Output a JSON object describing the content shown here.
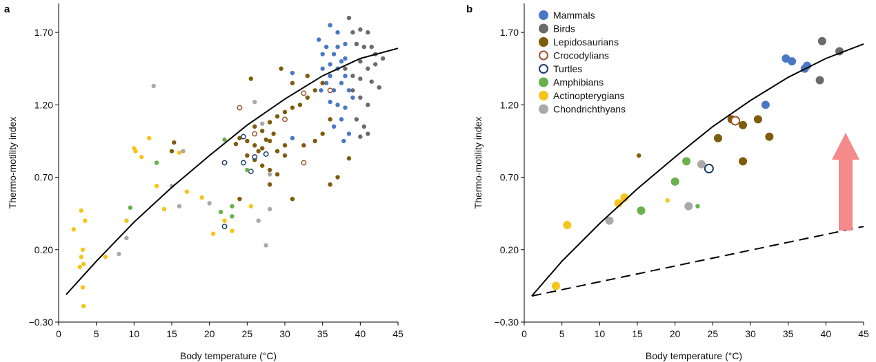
{
  "chart_data": [
    {
      "panel": "a",
      "type": "scatter",
      "xlabel": "Body temperature (°C)",
      "ylabel": "Thermo-motility index",
      "xlim": [
        0,
        45
      ],
      "ylim": [
        -0.3,
        1.9
      ],
      "xticks": [
        0,
        5,
        10,
        15,
        20,
        25,
        30,
        35,
        40,
        45
      ],
      "yticks": [
        -0.3,
        0.2,
        0.7,
        1.2,
        1.7
      ],
      "ytick_labels": [
        "−0.30",
        "0.20",
        "0.70",
        "1.20",
        "1.70"
      ],
      "fit_curve": [
        [
          1,
          -0.11
        ],
        [
          5,
          0.12
        ],
        [
          10,
          0.39
        ],
        [
          15,
          0.63
        ],
        [
          20,
          0.85
        ],
        [
          25,
          1.06
        ],
        [
          30,
          1.24
        ],
        [
          35,
          1.4
        ],
        [
          40,
          1.52
        ],
        [
          45,
          1.59
        ]
      ],
      "series": [
        {
          "name": "Mammals",
          "color": "#4a78c4",
          "hollow": false,
          "points": [
            [
              34.5,
              1.65
            ],
            [
              35.5,
              1.6
            ],
            [
              36,
              1.75
            ],
            [
              36.5,
              1.55
            ],
            [
              37,
              1.7
            ],
            [
              37.5,
              1.5
            ],
            [
              38,
              1.62
            ],
            [
              35,
              1.45
            ],
            [
              36,
              1.4
            ],
            [
              37,
              1.45
            ],
            [
              38,
              1.4
            ],
            [
              35.5,
              1.35
            ],
            [
              36.5,
              1.3
            ],
            [
              37.5,
              1.35
            ],
            [
              38.5,
              1.3
            ],
            [
              36,
              1.22
            ],
            [
              37,
              1.2
            ],
            [
              38,
              1.18
            ],
            [
              37.5,
              1.1
            ],
            [
              38.5,
              1.0
            ],
            [
              36.5,
              1.05
            ],
            [
              37.8,
              0.95
            ],
            [
              35,
              1.55
            ],
            [
              36,
              1.48
            ],
            [
              34.8,
              1.3
            ],
            [
              39,
              1.25
            ],
            [
              31,
              1.42
            ],
            [
              31,
              0.97
            ],
            [
              37,
              1.6
            ],
            [
              38,
              1.52
            ]
          ]
        },
        {
          "name": "Birds",
          "color": "#6b6b6b",
          "hollow": false,
          "points": [
            [
              38.5,
              1.8
            ],
            [
              39,
              1.7
            ],
            [
              40,
              1.72
            ],
            [
              41,
              1.7
            ],
            [
              39.5,
              1.62
            ],
            [
              40.5,
              1.6
            ],
            [
              41.5,
              1.6
            ],
            [
              42,
              1.55
            ],
            [
              40,
              1.5
            ],
            [
              41,
              1.45
            ],
            [
              42,
              1.48
            ],
            [
              43,
              1.52
            ],
            [
              39,
              1.4
            ],
            [
              40,
              1.38
            ],
            [
              41.5,
              1.36
            ],
            [
              42.5,
              1.32
            ],
            [
              40,
              1.25
            ],
            [
              41,
              1.2
            ],
            [
              39.5,
              1.1
            ],
            [
              40.5,
              1.05
            ],
            [
              41,
              1.0
            ],
            [
              40,
              0.98
            ],
            [
              39,
              1.3
            ],
            [
              38,
              1.45
            ]
          ]
        },
        {
          "name": "Lepidosaurians",
          "color": "#7d5c0c",
          "hollow": false,
          "points": [
            [
              24,
              0.97
            ],
            [
              25,
              0.95
            ],
            [
              26,
              0.92
            ],
            [
              27,
              0.9
            ],
            [
              28,
              0.95
            ],
            [
              29,
              0.88
            ],
            [
              30,
              0.92
            ],
            [
              25,
              0.85
            ],
            [
              26,
              0.82
            ],
            [
              27,
              0.78
            ],
            [
              28,
              0.75
            ],
            [
              29,
              0.72
            ],
            [
              30,
              0.85
            ],
            [
              26,
              1.05
            ],
            [
              27,
              1.02
            ],
            [
              28,
              1.08
            ],
            [
              29,
              1.12
            ],
            [
              30,
              1.15
            ],
            [
              31,
              1.18
            ],
            [
              32,
              1.2
            ],
            [
              33,
              1.25
            ],
            [
              34,
              1.3
            ],
            [
              35,
              1.35
            ],
            [
              25.5,
              1.38
            ],
            [
              29.5,
              1.45
            ],
            [
              31,
              1.35
            ],
            [
              33,
              1.4
            ],
            [
              36,
              0.65
            ],
            [
              37,
              0.7
            ],
            [
              38.5,
              0.83
            ],
            [
              15,
              0.88
            ],
            [
              15.3,
              0.94
            ],
            [
              24,
              0.55
            ],
            [
              31,
              0.55
            ],
            [
              28,
              0.65
            ],
            [
              32.5,
              0.92
            ],
            [
              35,
              1.0
            ],
            [
              36,
              1.1
            ],
            [
              34,
              0.95
            ],
            [
              27.5,
              0.96
            ],
            [
              26.5,
              0.88
            ],
            [
              23.5,
              0.93
            ],
            [
              28.5,
              1.0
            ]
          ]
        },
        {
          "name": "Crocodylians",
          "color": "#a0522d",
          "hollow": true,
          "points": [
            [
              24,
              1.18
            ],
            [
              26,
              1.0
            ],
            [
              30,
              1.1
            ],
            [
              32.5,
              1.28
            ],
            [
              32.5,
              0.8
            ],
            [
              36,
              1.3
            ]
          ]
        },
        {
          "name": "Turtles",
          "color": "#1a3a6b",
          "hollow": true,
          "points": [
            [
              22,
              0.8
            ],
            [
              24.5,
              0.8
            ],
            [
              25.5,
              0.74
            ],
            [
              26,
              0.84
            ],
            [
              27.5,
              0.86
            ],
            [
              24.5,
              0.98
            ],
            [
              22,
              0.36
            ]
          ]
        },
        {
          "name": "Amphibians",
          "color": "#6ab04c",
          "hollow": false,
          "points": [
            [
              13,
              0.8
            ],
            [
              9.5,
              0.49
            ],
            [
              22,
              0.96
            ],
            [
              23,
              0.5
            ],
            [
              21.5,
              0.46
            ],
            [
              25,
              0.75
            ],
            [
              23,
              0.43
            ]
          ]
        },
        {
          "name": "Actinopterygians",
          "color": "#f5c518",
          "hollow": false,
          "points": [
            [
              2,
              0.34
            ],
            [
              3,
              0.47
            ],
            [
              3.5,
              0.4
            ],
            [
              3.2,
              0.2
            ],
            [
              3,
              0.15
            ],
            [
              3.3,
              0.1
            ],
            [
              2.8,
              0.08
            ],
            [
              3.2,
              -0.06
            ],
            [
              3.3,
              -0.19
            ],
            [
              6.2,
              0.15
            ],
            [
              9,
              0.4
            ],
            [
              10,
              0.9
            ],
            [
              10.2,
              0.88
            ],
            [
              12,
              0.97
            ],
            [
              11,
              0.84
            ],
            [
              13,
              0.64
            ],
            [
              14,
              0.48
            ],
            [
              16,
              0.87
            ],
            [
              17,
              0.6
            ],
            [
              19,
              0.56
            ],
            [
              20.5,
              0.31
            ],
            [
              22,
              0.4
            ],
            [
              23,
              0.33
            ],
            [
              25.5,
              0.5
            ],
            [
              16.5,
              0.88
            ]
          ]
        },
        {
          "name": "Chondrichthyans",
          "color": "#a9a9a9",
          "hollow": false,
          "points": [
            [
              8,
              0.17
            ],
            [
              9,
              0.28
            ],
            [
              12.6,
              1.33
            ],
            [
              15,
              0.64
            ],
            [
              16,
              0.5
            ],
            [
              16.5,
              0.88
            ],
            [
              26.5,
              0.4
            ],
            [
              27.5,
              0.23
            ],
            [
              28,
              0.48
            ],
            [
              26,
              1.22
            ],
            [
              28,
              0.72
            ],
            [
              20,
              0.52
            ],
            [
              27,
              1.07
            ]
          ]
        }
      ]
    },
    {
      "panel": "b",
      "type": "scatter",
      "xlabel": "Body temperature (°C)",
      "ylabel": "Thermo-motility index",
      "xlim": [
        0,
        45
      ],
      "ylim": [
        -0.3,
        1.9
      ],
      "xticks": [
        0,
        5,
        10,
        15,
        20,
        25,
        30,
        35,
        40,
        45
      ],
      "yticks": [
        -0.3,
        0.2,
        0.7,
        1.2,
        1.7
      ],
      "ytick_labels": [
        "−0.30",
        "0.20",
        "0.70",
        "1.20",
        "1.70"
      ],
      "fit_curve": [
        [
          1,
          -0.12
        ],
        [
          5,
          0.12
        ],
        [
          10,
          0.38
        ],
        [
          15,
          0.62
        ],
        [
          20,
          0.84
        ],
        [
          25,
          1.05
        ],
        [
          30,
          1.23
        ],
        [
          35,
          1.39
        ],
        [
          40,
          1.52
        ],
        [
          45,
          1.62
        ]
      ],
      "reference_line": [
        [
          1,
          -0.12
        ],
        [
          45,
          0.36
        ]
      ],
      "legend": {
        "placement": "top-left",
        "entries": [
          {
            "label": "Mammals",
            "color": "#4a78c4",
            "hollow": false
          },
          {
            "label": "Birds",
            "color": "#6b6b6b",
            "hollow": false
          },
          {
            "label": "Lepidosaurians",
            "color": "#7d5c0c",
            "hollow": false
          },
          {
            "label": "Crocodylians",
            "color": "#a0522d",
            "hollow": true
          },
          {
            "label": "Turtles",
            "color": "#1a3a6b",
            "hollow": true
          },
          {
            "label": "Amphibians",
            "color": "#6ab04c",
            "hollow": false
          },
          {
            "label": "Actinopterygians",
            "color": "#f5c518",
            "hollow": false
          },
          {
            "label": "Chondrichthyans",
            "color": "#a9a9a9",
            "hollow": false
          }
        ]
      },
      "series": [
        {
          "name": "Mammals",
          "color": "#4a78c4",
          "hollow": false,
          "size": "large",
          "points": [
            [
              32,
              1.2
            ],
            [
              34.7,
              1.52
            ],
            [
              35.5,
              1.5
            ],
            [
              37.2,
              1.45
            ],
            [
              37.5,
              1.47
            ]
          ]
        },
        {
          "name": "Birds",
          "color": "#6b6b6b",
          "hollow": false,
          "size": "large",
          "points": [
            [
              39.2,
              1.37
            ],
            [
              39.5,
              1.64
            ],
            [
              41.8,
              1.57
            ]
          ]
        },
        {
          "name": "Lepidosaurians",
          "color": "#7d5c0c",
          "hollow": false,
          "size": "large",
          "points": [
            [
              25.7,
              0.97
            ],
            [
              27.5,
              1.1
            ],
            [
              29,
              1.06
            ],
            [
              31,
              1.1
            ],
            [
              32.5,
              0.98
            ],
            [
              29,
              0.81
            ]
          ]
        },
        {
          "name": "Lepidosaurians",
          "color": "#7d5c0c",
          "hollow": false,
          "size": "small",
          "points": [
            [
              15.2,
              0.85
            ]
          ]
        },
        {
          "name": "Crocodylians",
          "color": "#a0522d",
          "hollow": true,
          "size": "large",
          "points": [
            [
              28,
              1.09
            ]
          ]
        },
        {
          "name": "Turtles",
          "color": "#1a3a6b",
          "hollow": true,
          "size": "large",
          "points": [
            [
              24.5,
              0.76
            ]
          ]
        },
        {
          "name": "Amphibians",
          "color": "#6ab04c",
          "hollow": false,
          "size": "large",
          "points": [
            [
              15.5,
              0.47
            ],
            [
              20,
              0.67
            ],
            [
              21.5,
              0.81
            ]
          ]
        },
        {
          "name": "Amphibians",
          "color": "#6ab04c",
          "hollow": false,
          "size": "small",
          "points": [
            [
              23,
              0.5
            ]
          ]
        },
        {
          "name": "Actinopterygians",
          "color": "#f5c518",
          "hollow": false,
          "size": "large",
          "points": [
            [
              4.2,
              -0.05
            ],
            [
              5.7,
              0.37
            ],
            [
              12.5,
              0.52
            ],
            [
              13.3,
              0.56
            ]
          ]
        },
        {
          "name": "Actinopterygians",
          "color": "#f5c518",
          "hollow": false,
          "size": "small",
          "points": [
            [
              19,
              0.54
            ]
          ]
        },
        {
          "name": "Chondrichthyans",
          "color": "#a9a9a9",
          "hollow": false,
          "size": "large",
          "points": [
            [
              11.3,
              0.4
            ],
            [
              21.8,
              0.5
            ],
            [
              23.5,
              0.79
            ]
          ]
        }
      ]
    }
  ]
}
